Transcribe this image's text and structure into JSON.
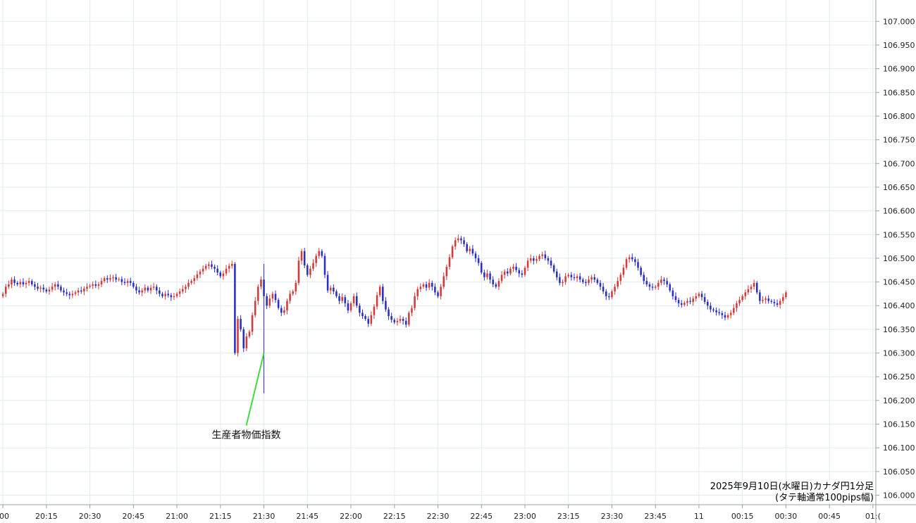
{
  "chart_data": {
    "type": "candlestick",
    "title": "",
    "caption_line1": "2025年9月10日(水曜日)カナダ円1分足",
    "caption_line2": "(タテ軸通常100pips幅)",
    "ylim": [
      105.98,
      107.045
    ],
    "y_ticks": [
      "107.000",
      "106.950",
      "106.900",
      "106.850",
      "106.800",
      "106.750",
      "106.700",
      "106.650",
      "106.600",
      "106.550",
      "106.500",
      "106.450",
      "106.400",
      "106.350",
      "106.300",
      "106.250",
      "106.200",
      "106.150",
      "106.100",
      "106.050",
      "106.000"
    ],
    "x_range_minutes": [
      -1,
      301
    ],
    "x_ticks": [
      {
        "label": ":00",
        "minute": 0
      },
      {
        "label": "20:15",
        "minute": 15
      },
      {
        "label": "20:30",
        "minute": 30
      },
      {
        "label": "20:45",
        "minute": 45
      },
      {
        "label": "21:00",
        "minute": 60
      },
      {
        "label": "21:15",
        "minute": 75
      },
      {
        "label": "21:30",
        "minute": 90
      },
      {
        "label": "21:45",
        "minute": 105
      },
      {
        "label": "22:00",
        "minute": 120
      },
      {
        "label": "22:15",
        "minute": 135
      },
      {
        "label": "22:30",
        "minute": 150
      },
      {
        "label": "22:45",
        "minute": 165
      },
      {
        "label": "23:00",
        "minute": 180
      },
      {
        "label": "23:15",
        "minute": 195
      },
      {
        "label": "23:30",
        "minute": 210
      },
      {
        "label": "23:45",
        "minute": 225
      },
      {
        "label": "11",
        "minute": 240
      },
      {
        "label": "00:15",
        "minute": 255
      },
      {
        "label": "00:30",
        "minute": 270
      },
      {
        "label": "00:45",
        "minute": 285
      },
      {
        "label": "01:(",
        "minute": 300
      }
    ],
    "up_color": "#d43a3a",
    "down_color": "#2a2fc0",
    "grid": true,
    "annotation": {
      "text": "生産者物価指数",
      "minute": 90,
      "price": 106.3
    },
    "closes": [
      106.425,
      106.44,
      106.445,
      106.455,
      106.448,
      106.445,
      106.45,
      106.445,
      106.448,
      106.452,
      106.445,
      106.44,
      106.436,
      106.438,
      106.434,
      106.43,
      106.434,
      106.44,
      106.445,
      106.44,
      106.432,
      106.428,
      106.425,
      106.422,
      106.425,
      106.428,
      106.432,
      106.43,
      106.436,
      106.44,
      106.442,
      106.445,
      106.442,
      106.445,
      106.452,
      106.458,
      106.455,
      106.458,
      106.46,
      106.455,
      106.456,
      106.45,
      106.448,
      106.452,
      106.448,
      106.44,
      106.432,
      106.428,
      106.432,
      106.438,
      106.432,
      106.438,
      106.44,
      106.432,
      106.425,
      106.42,
      106.425,
      106.422,
      106.418,
      106.42,
      106.425,
      106.43,
      106.435,
      106.44,
      106.448,
      106.452,
      106.458,
      106.466,
      106.472,
      106.478,
      106.484,
      106.487,
      106.482,
      106.478,
      106.47,
      106.462,
      106.468,
      106.478,
      106.484,
      106.488,
      106.3,
      106.372,
      106.35,
      106.31,
      106.335,
      106.345,
      106.38,
      106.41,
      106.44,
      106.455,
      106.42,
      106.4,
      106.415,
      106.425,
      106.412,
      106.395,
      106.385,
      106.39,
      106.41,
      106.425,
      106.43,
      106.448,
      106.495,
      106.515,
      106.485,
      106.465,
      106.478,
      106.49,
      106.505,
      106.515,
      106.505,
      106.465,
      106.432,
      106.438,
      106.43,
      106.42,
      106.41,
      106.418,
      106.405,
      106.39,
      106.405,
      106.42,
      106.4,
      106.385,
      106.378,
      106.372,
      106.362,
      106.38,
      106.398,
      106.422,
      106.44,
      106.41,
      106.392,
      106.378,
      106.37,
      106.365,
      106.368,
      106.372,
      106.368,
      106.36,
      106.385,
      106.395,
      106.42,
      106.435,
      106.44,
      106.445,
      106.438,
      106.448,
      106.44,
      106.428,
      106.42,
      106.44,
      106.462,
      106.482,
      106.502,
      106.525,
      106.538,
      106.542,
      106.538,
      106.53,
      106.515,
      106.52,
      106.51,
      106.5,
      106.49,
      106.47,
      106.46,
      106.468,
      106.455,
      106.445,
      106.44,
      106.452,
      106.465,
      106.472,
      106.468,
      106.478,
      106.482,
      106.475,
      106.468,
      106.465,
      106.48,
      106.495,
      106.5,
      106.495,
      106.498,
      106.505,
      106.508,
      106.5,
      106.495,
      106.485,
      106.472,
      106.46,
      106.448,
      106.45,
      106.462,
      106.465,
      106.46,
      106.458,
      106.462,
      106.455,
      106.45,
      106.448,
      106.455,
      106.46,
      106.455,
      106.448,
      106.44,
      106.43,
      106.42,
      106.418,
      106.43,
      106.44,
      106.452,
      106.465,
      106.48,
      106.498,
      106.502,
      106.498,
      106.492,
      106.48,
      106.465,
      106.452,
      106.445,
      106.44,
      106.438,
      106.44,
      106.448,
      106.455,
      106.452,
      106.445,
      106.432,
      106.42,
      106.412,
      106.405,
      106.402,
      106.406,
      106.41,
      106.408,
      106.415,
      106.42,
      106.425,
      106.418,
      106.408,
      106.4,
      106.392,
      106.39,
      106.386,
      106.384,
      106.38,
      106.375,
      106.38,
      106.385,
      106.395,
      106.405,
      106.412,
      106.42,
      106.428,
      106.435,
      106.44,
      106.448,
      106.428,
      106.41,
      106.412,
      106.415,
      106.41,
      106.408,
      106.405,
      106.402,
      106.41,
      106.418,
      106.428
    ],
    "first_open": 106.42,
    "spike_low": {
      "minute": 90,
      "price": 106.215
    },
    "spike_high": {
      "minute": 90,
      "price": 106.488
    }
  }
}
